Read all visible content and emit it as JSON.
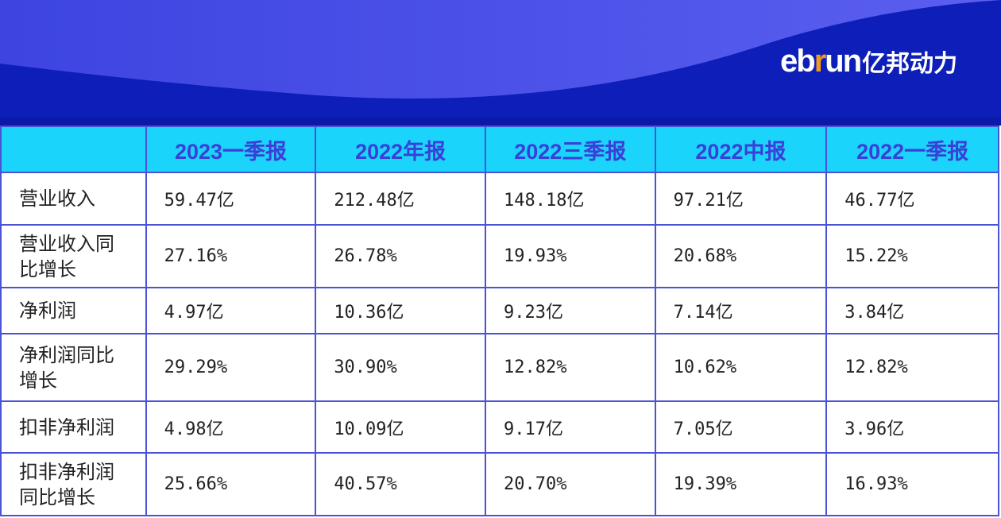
{
  "logo": {
    "text_main": "eb",
    "text_r": "r",
    "text_un": "un",
    "text_cn": "亿邦动力"
  },
  "colors": {
    "banner": "#0d1fb8",
    "wave": "#4a4fe6",
    "header_bg": "#1ad4fb",
    "header_text": "#3b3fd8",
    "border": "#4a52d6",
    "logo_accent": "#f39a1b"
  },
  "table": {
    "columns": [
      "",
      "2023一季报",
      "2022年报",
      "2022三季报",
      "2022中报",
      "2022一季报"
    ],
    "rows": [
      {
        "label": "营业收入",
        "values": [
          "59.47亿",
          "212.48亿",
          "148.18亿",
          "97.21亿",
          "46.77亿"
        ]
      },
      {
        "label": "营业收入同比增长",
        "values": [
          "27.16%",
          "26.78%",
          "19.93%",
          "20.68%",
          "15.22%"
        ]
      },
      {
        "label": "净利润",
        "values": [
          "4.97亿",
          "10.36亿",
          "9.23亿",
          "7.14亿",
          "3.84亿"
        ]
      },
      {
        "label": "净利润同比增长",
        "values": [
          "29.29%",
          "30.90%",
          "12.82%",
          "10.62%",
          "12.82%"
        ]
      },
      {
        "label": "扣非净利润",
        "values": [
          "4.98亿",
          "10.09亿",
          "9.17亿",
          "7.05亿",
          "3.96亿"
        ]
      },
      {
        "label": "扣非净利润同比增长",
        "values": [
          "25.66%",
          "40.57%",
          "20.70%",
          "19.39%",
          "16.93%"
        ]
      }
    ]
  }
}
